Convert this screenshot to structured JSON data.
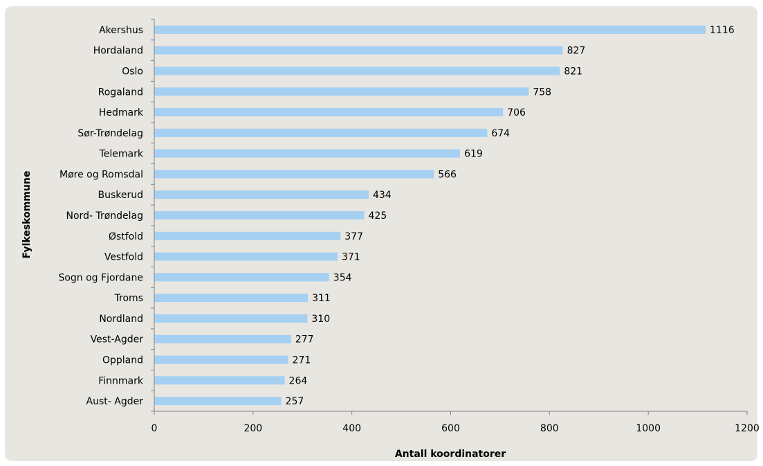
{
  "chart_data": {
    "type": "bar",
    "orientation": "horizontal",
    "categories": [
      "Akershus",
      "Hordaland",
      "Oslo",
      "Rogaland",
      "Hedmark",
      "Sør-Trøndelag",
      "Telemark",
      "Møre og Romsdal",
      "Buskerud",
      "Nord- Trøndelag",
      "Østfold",
      "Vestfold",
      "Sogn og Fjordane",
      "Troms",
      "Nordland",
      "Vest-Agder",
      "Oppland",
      "Finnmark",
      "Aust- Agder"
    ],
    "values": [
      1116,
      827,
      821,
      758,
      706,
      674,
      619,
      566,
      434,
      425,
      377,
      371,
      354,
      311,
      310,
      277,
      271,
      264,
      257
    ],
    "xlabel": "Antall koordinatorer",
    "ylabel": "Fylkeskommune",
    "xlim": [
      0,
      1200
    ],
    "xticks": [
      "0",
      "200",
      "400",
      "600",
      "800",
      "1000",
      "1200"
    ],
    "grid": false,
    "legend": "none",
    "bar_color": "#a6d0f2",
    "background_color": "#e8e6e1"
  }
}
